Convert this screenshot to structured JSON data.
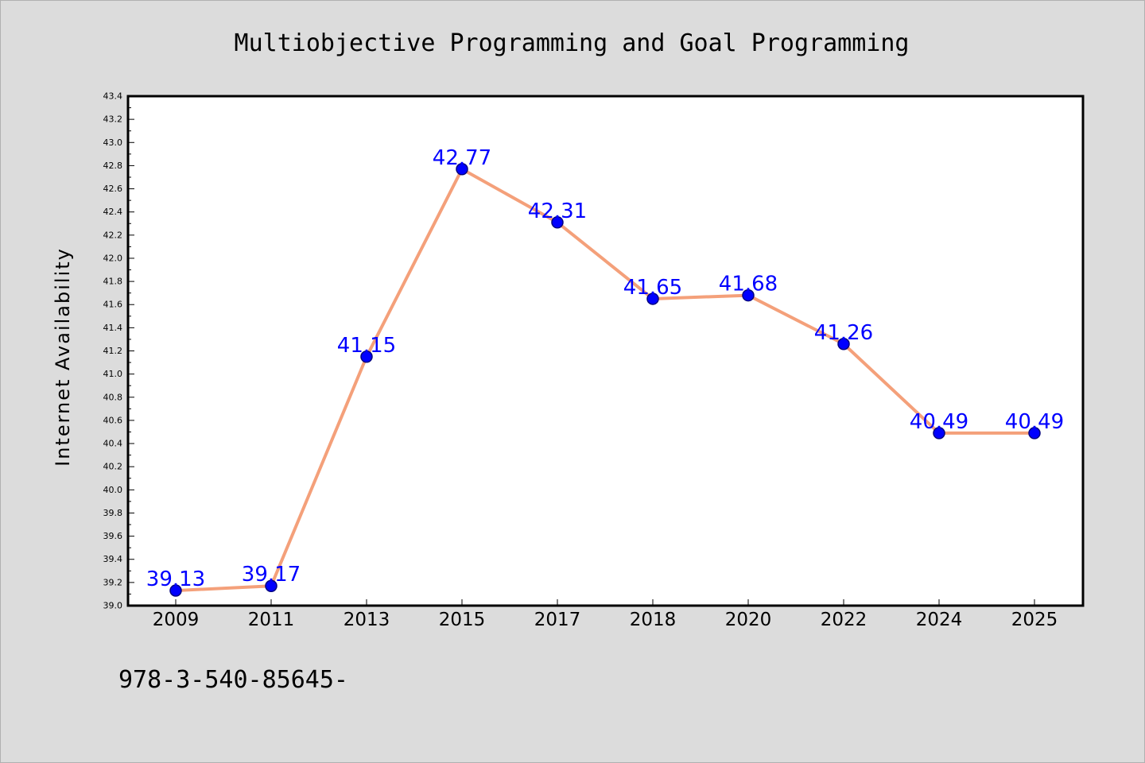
{
  "chart_data": {
    "type": "line",
    "title": "Multiobjective Programming and Goal Programming",
    "xlabel": "",
    "ylabel": "Internet Availability",
    "categories": [
      "2009",
      "2011",
      "2013",
      "2015",
      "2017",
      "2018",
      "2020",
      "2022",
      "2024",
      "2025"
    ],
    "values": [
      39.13,
      39.17,
      41.15,
      42.77,
      42.31,
      41.65,
      41.68,
      41.26,
      40.49,
      40.49
    ],
    "data_labels": [
      "39.13",
      "39.17",
      "41.15",
      "42.77",
      "42.31",
      "41.65",
      "41.68",
      "41.26",
      "40.49",
      "40.49"
    ],
    "ylim": [
      39.0,
      43.4
    ],
    "y_ticks": [
      "39.0",
      "39.2",
      "39.4",
      "39.6",
      "39.8",
      "40.0",
      "40.2",
      "40.4",
      "40.6",
      "40.8",
      "41.0",
      "41.2",
      "41.4",
      "41.6",
      "41.8",
      "42.0",
      "42.2",
      "42.4",
      "42.6",
      "42.8",
      "43.0",
      "43.2",
      "43.4"
    ],
    "y_tick_step": 0.2,
    "grid": false,
    "legend": "none",
    "footer_text": "978-3-540-85645-",
    "colors": {
      "line": "#f4a07a",
      "marker": "#0000ff",
      "marker_edge": "#000080",
      "data_label": "#0000ff",
      "background": "#dcdcdc",
      "plot_area": "#ffffff"
    }
  }
}
